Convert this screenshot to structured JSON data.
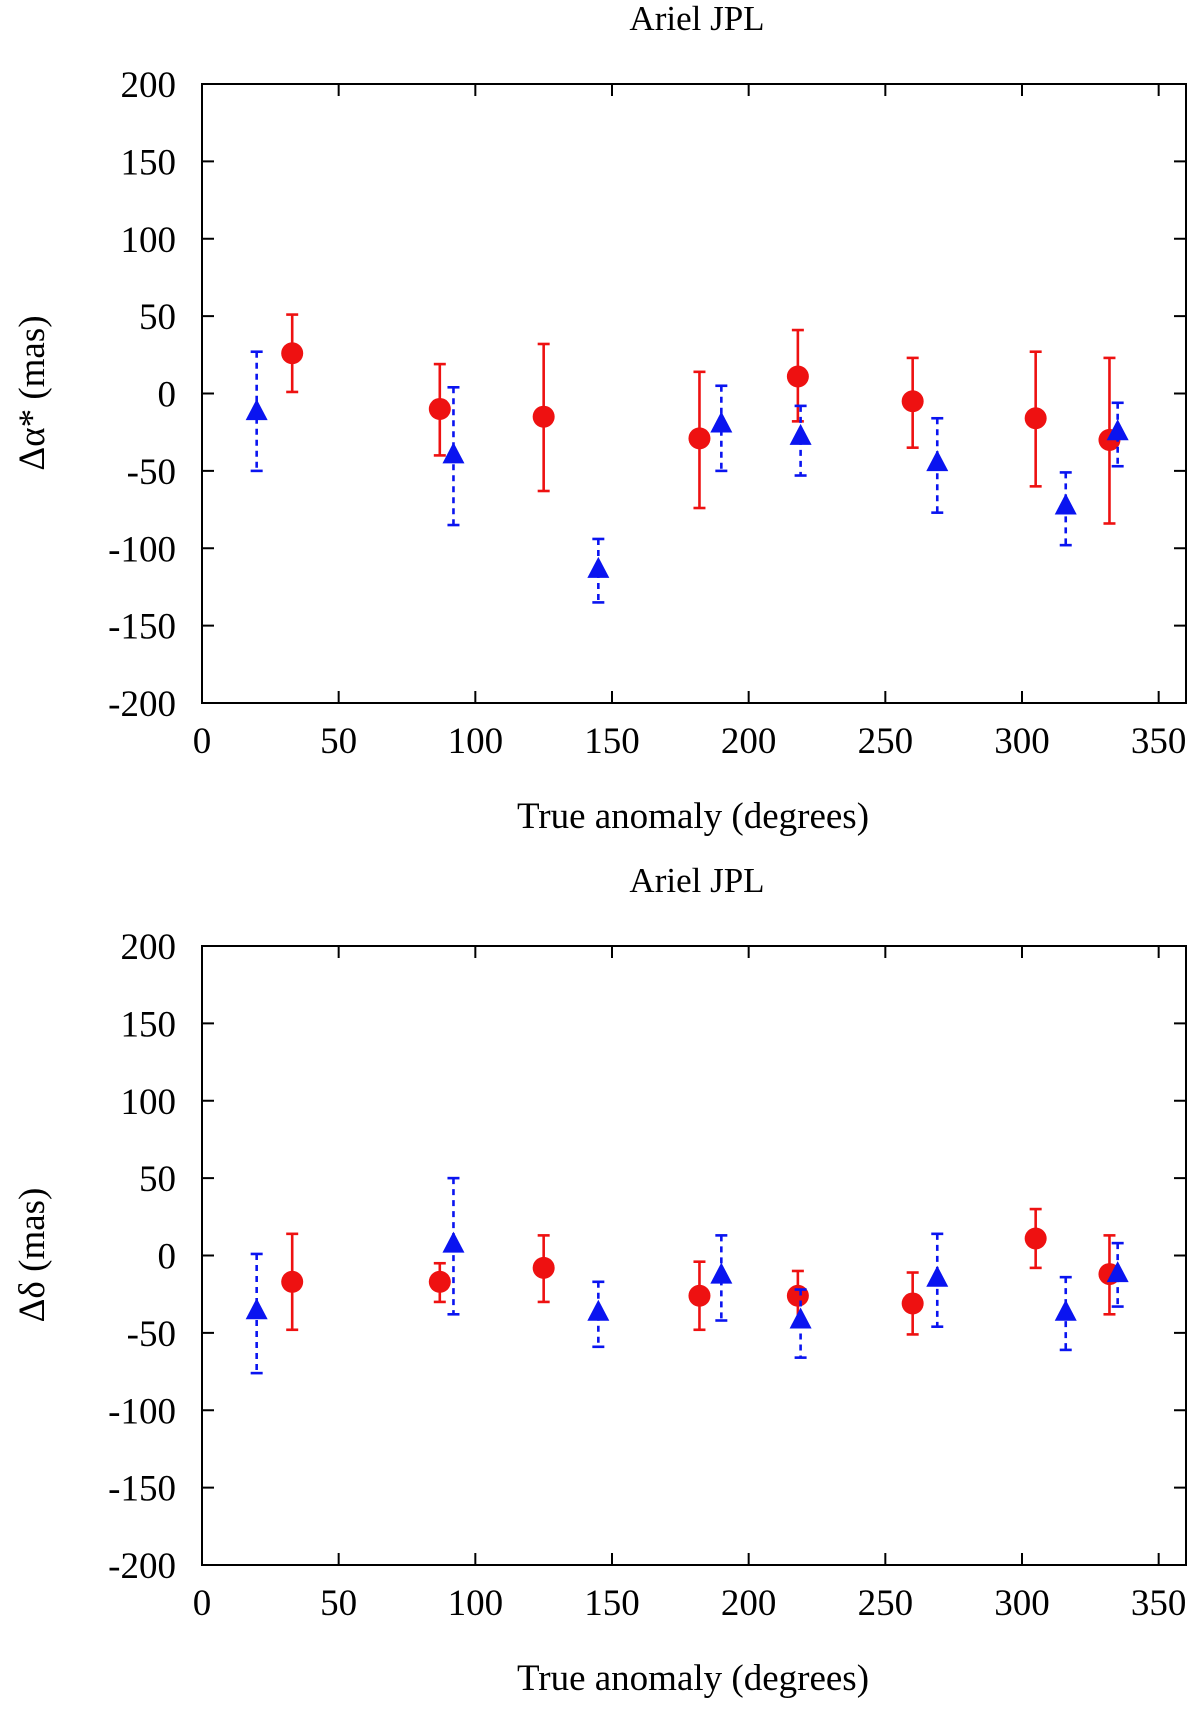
{
  "figure": {
    "name": "ariel-jpl-residuals"
  },
  "colors": {
    "series_a": "#ee1111",
    "series_b": "#0a14f0",
    "axis": "#000000"
  },
  "chart_data": [
    {
      "type": "scatter",
      "title": "Ariel JPL",
      "xlabel": "True anomaly (degrees)",
      "ylabel": "Δα* (mas)",
      "xlim": [
        0,
        360
      ],
      "ylim": [
        -200,
        200
      ],
      "xticks": [
        0,
        50,
        100,
        150,
        200,
        250,
        300,
        350
      ],
      "yticks": [
        200,
        150,
        100,
        50,
        0,
        -50,
        -100,
        -150,
        -200
      ],
      "grid": false,
      "series": [
        {
          "name": "circles",
          "marker": "circle",
          "line_style": "solid",
          "color": "#ee1111",
          "points": [
            {
              "x": 33,
              "y": 26,
              "lo": 1,
              "hi": 51
            },
            {
              "x": 87,
              "y": -10,
              "lo": -40,
              "hi": 19
            },
            {
              "x": 125,
              "y": -15,
              "lo": -63,
              "hi": 32
            },
            {
              "x": 182,
              "y": -29,
              "lo": -74,
              "hi": 14
            },
            {
              "x": 218,
              "y": 11,
              "lo": -18,
              "hi": 41
            },
            {
              "x": 260,
              "y": -5,
              "lo": -35,
              "hi": 23
            },
            {
              "x": 305,
              "y": -16,
              "lo": -60,
              "hi": 27
            },
            {
              "x": 332,
              "y": -30,
              "lo": -84,
              "hi": 23
            }
          ]
        },
        {
          "name": "triangles",
          "marker": "triangle",
          "line_style": "dashed",
          "color": "#0a14f0",
          "points": [
            {
              "x": 20,
              "y": -12,
              "lo": -50,
              "hi": 27
            },
            {
              "x": 92,
              "y": -40,
              "lo": -85,
              "hi": 4
            },
            {
              "x": 145,
              "y": -114,
              "lo": -135,
              "hi": -94
            },
            {
              "x": 190,
              "y": -20,
              "lo": -50,
              "hi": 5
            },
            {
              "x": 219,
              "y": -28,
              "lo": -53,
              "hi": -8
            },
            {
              "x": 269,
              "y": -45,
              "lo": -77,
              "hi": -16
            },
            {
              "x": 316,
              "y": -73,
              "lo": -98,
              "hi": -51
            },
            {
              "x": 335,
              "y": -25,
              "lo": -47,
              "hi": -6
            }
          ]
        }
      ]
    },
    {
      "type": "scatter",
      "title": "Ariel JPL",
      "xlabel": "True anomaly (degrees)",
      "ylabel": "Δδ (mas)",
      "xlim": [
        0,
        360
      ],
      "ylim": [
        -200,
        200
      ],
      "xticks": [
        0,
        50,
        100,
        150,
        200,
        250,
        300,
        350
      ],
      "yticks": [
        200,
        150,
        100,
        50,
        0,
        -50,
        -100,
        -150,
        -200
      ],
      "grid": false,
      "series": [
        {
          "name": "circles",
          "marker": "circle",
          "line_style": "solid",
          "color": "#ee1111",
          "points": [
            {
              "x": 33,
              "y": -17,
              "lo": -48,
              "hi": 14
            },
            {
              "x": 87,
              "y": -17,
              "lo": -30,
              "hi": -5
            },
            {
              "x": 125,
              "y": -8,
              "lo": -30,
              "hi": 13
            },
            {
              "x": 182,
              "y": -26,
              "lo": -48,
              "hi": -4
            },
            {
              "x": 218,
              "y": -26,
              "lo": -45,
              "hi": -10
            },
            {
              "x": 260,
              "y": -31,
              "lo": -51,
              "hi": -11
            },
            {
              "x": 305,
              "y": 11,
              "lo": -8,
              "hi": 30
            },
            {
              "x": 332,
              "y": -12,
              "lo": -38,
              "hi": 13
            }
          ]
        },
        {
          "name": "triangles",
          "marker": "triangle",
          "line_style": "dashed",
          "color": "#0a14f0",
          "points": [
            {
              "x": 20,
              "y": -36,
              "lo": -76,
              "hi": 1
            },
            {
              "x": 92,
              "y": 7,
              "lo": -38,
              "hi": 50
            },
            {
              "x": 145,
              "y": -37,
              "lo": -59,
              "hi": -17
            },
            {
              "x": 190,
              "y": -13,
              "lo": -42,
              "hi": 13
            },
            {
              "x": 219,
              "y": -42,
              "lo": -66,
              "hi": -22
            },
            {
              "x": 269,
              "y": -15,
              "lo": -46,
              "hi": 14
            },
            {
              "x": 316,
              "y": -37,
              "lo": -61,
              "hi": -14
            },
            {
              "x": 335,
              "y": -12,
              "lo": -33,
              "hi": 8
            }
          ]
        }
      ]
    }
  ]
}
